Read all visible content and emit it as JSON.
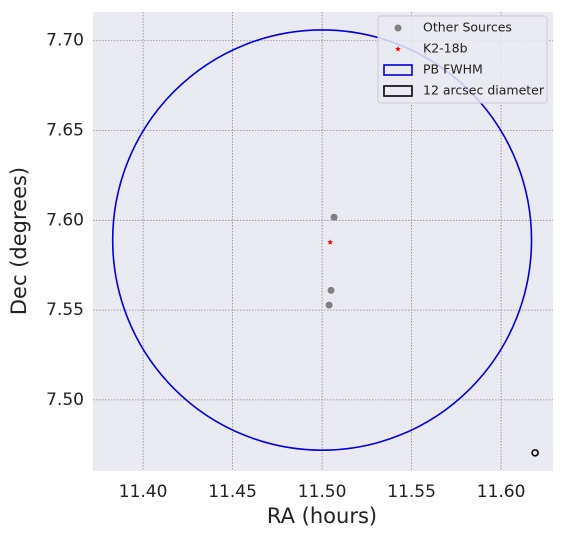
{
  "chart_data": {
    "type": "scatter",
    "xlabel": "RA (hours)",
    "ylabel": "Dec (degrees)",
    "xlim": [
      11.372,
      11.629
    ],
    "ylim": [
      7.4604,
      7.716
    ],
    "xticks": [
      {
        "value": 11.4,
        "label": "11.40"
      },
      {
        "value": 11.45,
        "label": "11.45"
      },
      {
        "value": 11.5,
        "label": "11.50"
      },
      {
        "value": 11.55,
        "label": "11.55"
      },
      {
        "value": 11.6,
        "label": "11.60"
      }
    ],
    "yticks": [
      {
        "value": 7.5,
        "label": "7.50"
      },
      {
        "value": 7.55,
        "label": "7.55"
      },
      {
        "value": 7.6,
        "label": "7.60"
      },
      {
        "value": 7.65,
        "label": "7.65"
      },
      {
        "value": 7.7,
        "label": "7.70"
      }
    ],
    "grid": true,
    "legend": "upper right",
    "series": [
      {
        "name": "Other Sources",
        "color": "#808080",
        "marker": "circle",
        "x": [
          11.5067,
          11.505,
          11.5039
        ],
        "y": [
          7.6017,
          7.561,
          7.5528
        ]
      },
      {
        "name": "K2-18b",
        "color": "#ff0000",
        "marker": "star",
        "x": [
          11.5045
        ],
        "y": [
          7.5878
        ]
      }
    ],
    "circles": [
      {
        "name": "PB FWHM",
        "color": "#0000dd",
        "x": 11.5,
        "y": 7.589,
        "radius": 0.117
      },
      {
        "name": "12 arcsec diameter",
        "color": "#000000",
        "x": 11.619,
        "y": 7.4705,
        "radius": 0.00167
      }
    ]
  }
}
